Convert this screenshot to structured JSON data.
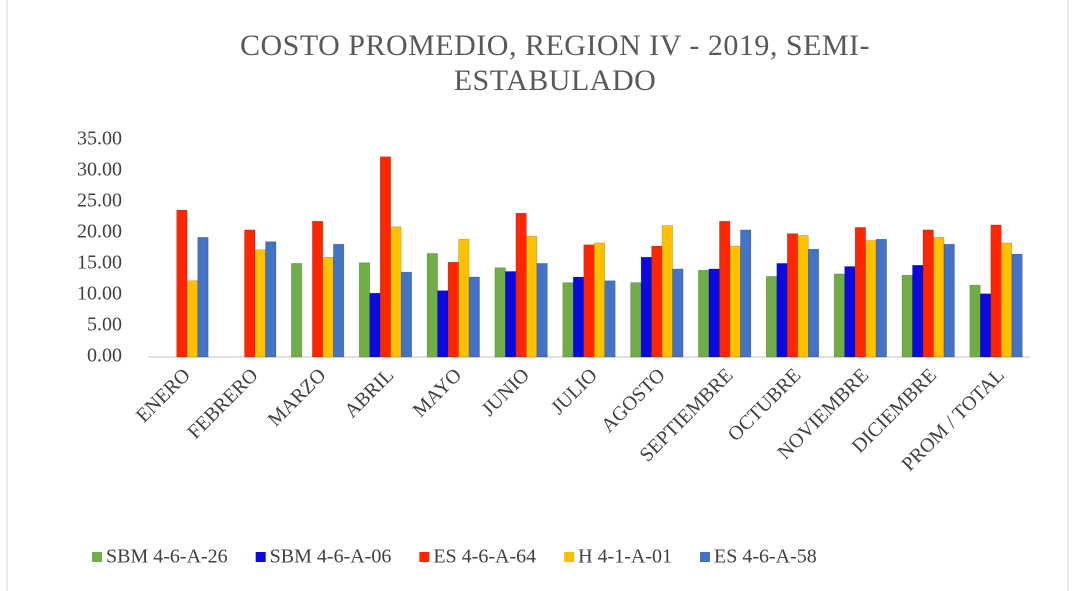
{
  "chart_data": {
    "type": "bar",
    "title": "COSTO PROMEDIO, REGION IV - 2019, SEMI-ESTABULADO",
    "categories": [
      "ENERO",
      "FEBRERO",
      "MARZO",
      "ABRIL",
      "MAYO",
      "JUNIO",
      "JULIO",
      "AGOSTO",
      "SEPTIEMBRE",
      "OCTUBRE",
      "NOVIEMBRE",
      "DICIEMBRE",
      "PROM / TOTAL"
    ],
    "series": [
      {
        "name": "SBM 4-6-A-26",
        "color": "#70ad47",
        "values": [
          0,
          0,
          15.1,
          15.2,
          16.7,
          14.4,
          12.0,
          12.0,
          14.0,
          13.0,
          13.4,
          13.2,
          11.6
        ]
      },
      {
        "name": "SBM 4-6-A-06",
        "color": "#0a0ae0",
        "values": [
          0,
          0,
          0,
          10.3,
          10.7,
          13.8,
          12.9,
          16.1,
          14.2,
          15.1,
          14.6,
          14.8,
          10.2
        ]
      },
      {
        "name": "ES 4-6-A-64",
        "color": "#ff2600",
        "values": [
          23.7,
          20.5,
          21.9,
          32.3,
          15.3,
          23.2,
          18.1,
          17.9,
          21.9,
          19.9,
          20.9,
          20.5,
          21.3
        ]
      },
      {
        "name": "H 4-1-A-01",
        "color": "#ffc000",
        "values": [
          12.3,
          17.3,
          16.1,
          21.0,
          19.0,
          19.5,
          18.4,
          21.2,
          17.9,
          19.6,
          18.8,
          19.3,
          18.4
        ]
      },
      {
        "name": "ES 4-6-A-58",
        "color": "#4472c4",
        "values": [
          19.3,
          18.6,
          18.2,
          13.7,
          12.9,
          15.1,
          12.3,
          14.2,
          20.5,
          17.4,
          19.0,
          18.2,
          16.6
        ]
      }
    ],
    "ylim": [
      0,
      35
    ],
    "yticks": [
      {
        "value": 0,
        "label": "0.00"
      },
      {
        "value": 5,
        "label": "5.00"
      },
      {
        "value": 10,
        "label": "10.00"
      },
      {
        "value": 15,
        "label": "15.00"
      },
      {
        "value": 20,
        "label": "20.00"
      },
      {
        "value": 25,
        "label": "25.00"
      },
      {
        "value": 30,
        "label": "30.00"
      },
      {
        "value": 35,
        "label": "35.00"
      }
    ],
    "grid": false,
    "legend": "bottom"
  }
}
